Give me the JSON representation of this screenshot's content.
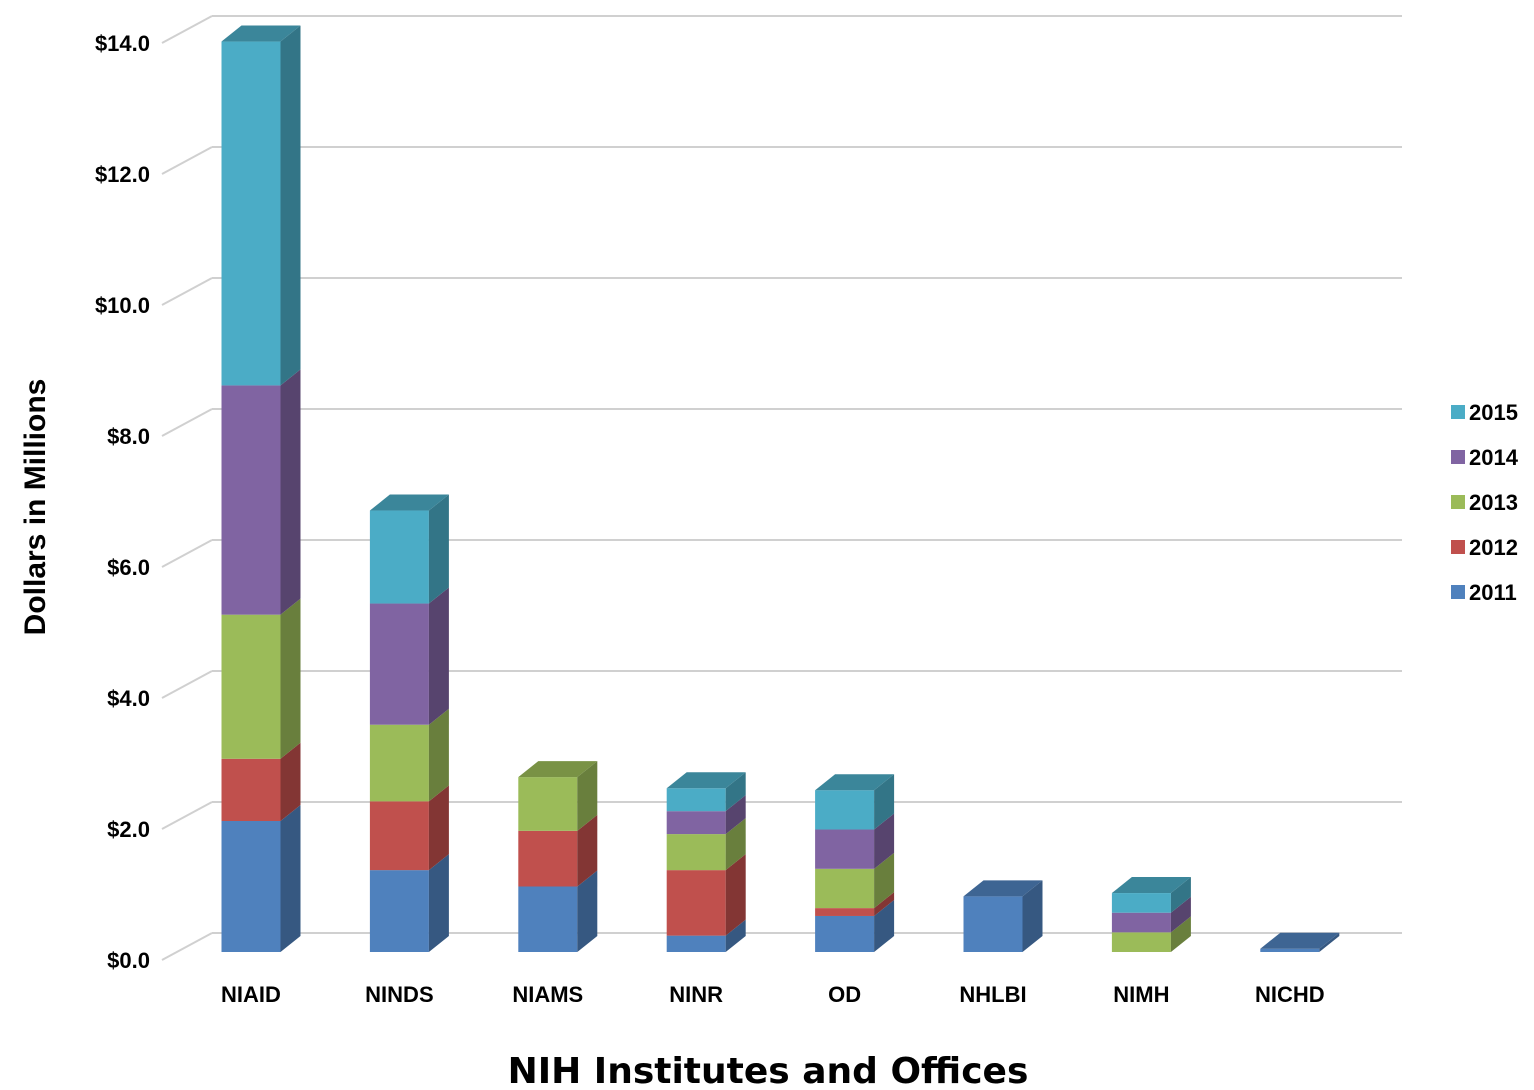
{
  "chart_data": {
    "type": "bar",
    "stacked": true,
    "three_d": true,
    "title": "",
    "xlabel": "NIH Institutes and Offices",
    "ylabel": "Dollars in Millions",
    "ylim": [
      0,
      14
    ],
    "yticks": [
      0,
      2,
      4,
      6,
      8,
      10,
      12,
      14
    ],
    "ytick_labels": [
      "$0.0",
      "$2.0",
      "$4.0",
      "$6.0",
      "$8.0",
      "$10.0",
      "$12.0",
      "$14.0"
    ],
    "grid": true,
    "legend_position": "right",
    "categories": [
      "NIAID",
      "NINDS",
      "NIAMS",
      "NINR",
      "OD",
      "NHLBI",
      "NIMH",
      "NICHD"
    ],
    "series": [
      {
        "name": "2011",
        "color": "#4F81BD",
        "values": [
          2.0,
          1.25,
          1.0,
          0.25,
          0.55,
          0.85,
          0.0,
          0.05
        ]
      },
      {
        "name": "2012",
        "color": "#C0504D",
        "values": [
          0.95,
          1.05,
          0.85,
          1.0,
          0.12,
          0.0,
          0.0,
          0.0
        ]
      },
      {
        "name": "2013",
        "color": "#9BBB59",
        "values": [
          2.2,
          1.17,
          0.82,
          0.55,
          0.6,
          0.0,
          0.3,
          0.0
        ]
      },
      {
        "name": "2014",
        "color": "#8064A2",
        "values": [
          3.5,
          1.85,
          0.0,
          0.35,
          0.6,
          0.0,
          0.3,
          0.0
        ]
      },
      {
        "name": "2015",
        "color": "#4BACC6",
        "values": [
          5.25,
          1.42,
          0.0,
          0.35,
          0.6,
          0.0,
          0.3,
          0.0
        ]
      }
    ]
  }
}
